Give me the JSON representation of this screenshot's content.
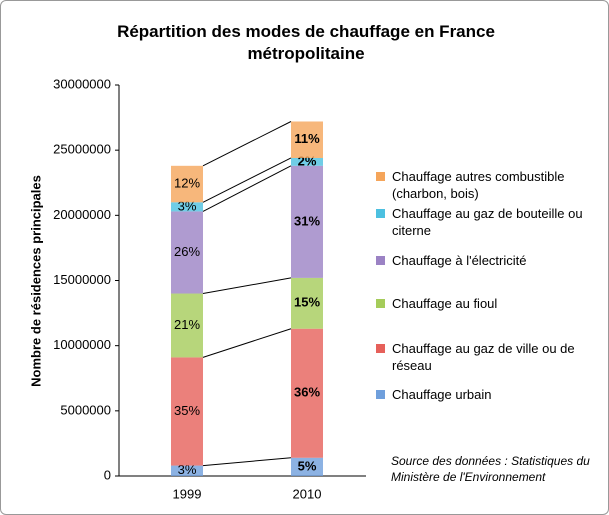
{
  "chart_data": {
    "type": "stacked_bar",
    "title": "Répartition des modes de chauffage en France métropolitaine",
    "y_label": "Nombre de résidences principales",
    "source": "Source des données : Statistiques du Ministère de l'Environnement",
    "categories": [
      "1999",
      "2010"
    ],
    "series": [
      {
        "name": "Chauffage urbain",
        "color": "#6f9fdc",
        "values": [
          800000,
          1400000
        ],
        "percent_labels": [
          "3%",
          "5%"
        ]
      },
      {
        "name": "Chauffage au gaz de ville ou de réseau",
        "color": "#e6605a",
        "values": [
          8300000,
          9900000
        ],
        "percent_labels": [
          "35%",
          "36%"
        ]
      },
      {
        "name": "Chauffage au fioul",
        "color": "#a5cc5a",
        "values": [
          4900000,
          3900000
        ],
        "percent_labels": [
          "21%",
          "15%"
        ]
      },
      {
        "name": "Chauffage à l'électricité",
        "color": "#9b82c4",
        "values": [
          6300000,
          8600000
        ],
        "percent_labels": [
          "26%",
          "31%"
        ]
      },
      {
        "name": "Chauffage au gaz de bouteille ou citerne",
        "color": "#4cc0e0",
        "values": [
          700000,
          600000
        ],
        "percent_labels": [
          "3%",
          "2%"
        ]
      },
      {
        "name": "Chauffage autres combustible (charbon, bois)",
        "color": "#f5a55a",
        "values": [
          2800000,
          2800000
        ],
        "percent_labels": [
          "12%",
          "11%"
        ]
      }
    ],
    "ylim": [
      0,
      30000000
    ],
    "yticks": [
      0,
      5000000,
      10000000,
      15000000,
      20000000,
      25000000,
      30000000
    ]
  }
}
